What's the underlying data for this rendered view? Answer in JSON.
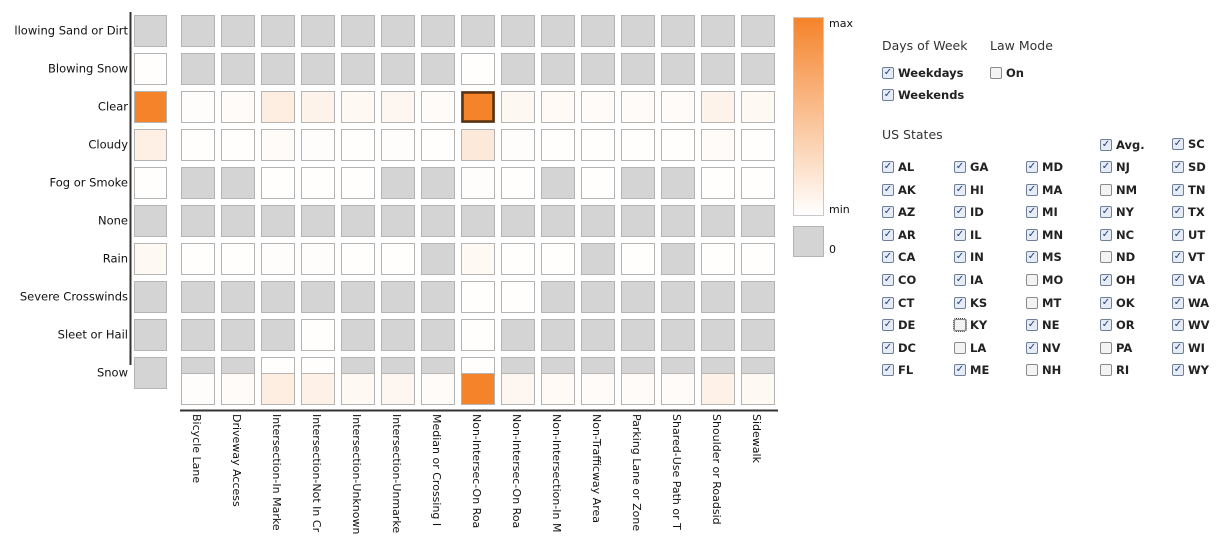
{
  "chart_data": {
    "type": "heatmap",
    "rows": [
      "llowing Sand or Dirt",
      "Blowing Snow",
      "Clear",
      "Cloudy",
      "Fog or Smoke",
      "None",
      "Rain",
      "Severe Crosswinds",
      "Sleet or Hail",
      "Snow"
    ],
    "columns": [
      "Bicycle Lane",
      "Driveway Access",
      "Intersection-In Marke",
      "Intersection-Not In Cr",
      "Intersection-Unknown",
      "Intersection-Unmarke",
      "Median or Crossing I",
      "Non-Intersec-On Roa",
      "Non-Intersec-On Roa",
      "Non-Intersection-In M",
      "Non-Trafficway Area",
      "Parking Lane or Zone",
      "Shared-Use Path or T",
      "Shoulder or Roadsid",
      "Sidewalk"
    ],
    "values": [
      [
        0,
        0,
        0,
        0,
        0,
        0,
        0,
        0,
        0,
        0,
        0,
        0,
        0,
        0,
        0
      ],
      [
        0,
        0,
        0,
        0,
        0,
        0,
        0,
        0.01,
        0,
        0,
        0,
        0,
        0,
        0,
        0
      ],
      [
        0.02,
        0.03,
        0.14,
        0.1,
        0.05,
        0.07,
        0.03,
        1.0,
        0.06,
        0.04,
        0.03,
        0.03,
        0.03,
        0.1,
        0.05
      ],
      [
        0.01,
        0.01,
        0.03,
        0.02,
        0.01,
        0.02,
        0.01,
        0.18,
        0.02,
        0.01,
        0.01,
        0.01,
        0.01,
        0.03,
        0.01
      ],
      [
        0,
        0,
        0.01,
        0.01,
        0.01,
        0,
        0,
        0.02,
        0.01,
        0,
        0.01,
        0,
        0,
        0.01,
        0.01
      ],
      [
        0,
        0,
        0,
        0,
        0,
        0,
        0,
        0,
        0,
        0,
        0,
        0,
        0,
        0,
        0
      ],
      [
        0.01,
        0.01,
        0.02,
        0.02,
        0.01,
        0.01,
        0,
        0.05,
        0.01,
        0.01,
        0,
        0.01,
        0,
        0.01,
        0.01
      ],
      [
        0,
        0,
        0,
        0,
        0,
        0,
        0,
        0.01,
        0.01,
        0,
        0,
        0,
        0,
        0,
        0
      ],
      [
        0,
        0,
        0,
        0.01,
        0,
        0,
        0,
        0.01,
        0,
        0,
        0,
        0,
        0,
        0,
        0
      ],
      [
        0,
        0,
        0.01,
        0.01,
        0,
        0,
        0,
        0.01,
        0,
        0,
        0,
        0,
        0,
        0,
        0
      ]
    ],
    "zero_cells": [
      [
        0,
        1,
        2,
        3,
        4,
        5,
        6,
        7,
        8,
        9,
        10,
        11,
        12,
        13,
        14
      ],
      [
        0,
        1,
        2,
        3,
        4,
        5,
        6,
        8,
        9,
        10,
        11,
        12,
        13,
        14
      ],
      [],
      [],
      [
        0,
        1,
        5,
        6,
        9,
        11,
        12
      ],
      [
        0,
        1,
        2,
        3,
        4,
        5,
        6,
        7,
        8,
        9,
        10,
        11,
        12,
        13,
        14
      ],
      [
        6,
        10,
        12
      ],
      [
        0,
        1,
        2,
        3,
        4,
        5,
        6,
        9,
        10,
        11,
        12,
        13,
        14
      ],
      [
        0,
        1,
        2,
        4,
        5,
        6,
        8,
        9,
        10,
        11,
        12,
        13,
        14
      ],
      [
        0,
        1,
        4,
        5,
        6,
        8,
        9,
        10,
        11,
        12,
        13,
        14
      ]
    ],
    "row_totals": [
      0,
      0.01,
      1.0,
      0.12,
      0.01,
      0,
      0.05,
      0,
      0,
      0
    ],
    "column_totals": [
      0.02,
      0.03,
      0.14,
      0.11,
      0.05,
      0.07,
      0.03,
      1.0,
      0.07,
      0.04,
      0.03,
      0.03,
      0.03,
      0.11,
      0.05
    ],
    "highlight_cell": {
      "row": 2,
      "col": 7
    },
    "legend": {
      "max_label": "max",
      "min_label": "min",
      "zero_label": "0"
    },
    "colors": {
      "max": "#f5832a",
      "min": "#ffffff",
      "zero": "#d4d4d4",
      "grid_stroke": "#b4b4b4",
      "highlight_stroke": "#5a3210"
    }
  },
  "controls": {
    "days_title": "Days of Week",
    "days": [
      {
        "label": "Weekdays",
        "checked": true
      },
      {
        "label": "Weekends",
        "checked": true
      }
    ],
    "law_title": "Law Mode",
    "law": {
      "label": "On",
      "checked": false
    },
    "states_title": "US States",
    "avg": {
      "label": "Avg.",
      "checked": true
    },
    "states": [
      {
        "label": "AL",
        "checked": true
      },
      {
        "label": "AK",
        "checked": true
      },
      {
        "label": "AZ",
        "checked": true
      },
      {
        "label": "AR",
        "checked": true
      },
      {
        "label": "CA",
        "checked": true
      },
      {
        "label": "CO",
        "checked": true
      },
      {
        "label": "CT",
        "checked": true
      },
      {
        "label": "DE",
        "checked": true
      },
      {
        "label": "DC",
        "checked": true
      },
      {
        "label": "FL",
        "checked": true
      },
      {
        "label": "GA",
        "checked": true
      },
      {
        "label": "HI",
        "checked": true
      },
      {
        "label": "ID",
        "checked": true
      },
      {
        "label": "IL",
        "checked": true
      },
      {
        "label": "IN",
        "checked": true
      },
      {
        "label": "IA",
        "checked": true
      },
      {
        "label": "KS",
        "checked": true
      },
      {
        "label": "KY",
        "checked": false,
        "focused": true
      },
      {
        "label": "LA",
        "checked": false
      },
      {
        "label": "ME",
        "checked": true
      },
      {
        "label": "MD",
        "checked": true
      },
      {
        "label": "MA",
        "checked": true
      },
      {
        "label": "MI",
        "checked": true
      },
      {
        "label": "MN",
        "checked": true
      },
      {
        "label": "MS",
        "checked": true
      },
      {
        "label": "MO",
        "checked": false
      },
      {
        "label": "MT",
        "checked": false
      },
      {
        "label": "NE",
        "checked": true
      },
      {
        "label": "NV",
        "checked": true
      },
      {
        "label": "NH",
        "checked": false
      },
      {
        "label": "NJ",
        "checked": true
      },
      {
        "label": "NM",
        "checked": false
      },
      {
        "label": "NY",
        "checked": true
      },
      {
        "label": "NC",
        "checked": true
      },
      {
        "label": "ND",
        "checked": false
      },
      {
        "label": "OH",
        "checked": true
      },
      {
        "label": "OK",
        "checked": true
      },
      {
        "label": "OR",
        "checked": true
      },
      {
        "label": "PA",
        "checked": false
      },
      {
        "label": "RI",
        "checked": false
      },
      {
        "label": "SC",
        "checked": true
      },
      {
        "label": "SD",
        "checked": true
      },
      {
        "label": "TN",
        "checked": true
      },
      {
        "label": "TX",
        "checked": true
      },
      {
        "label": "UT",
        "checked": true
      },
      {
        "label": "VT",
        "checked": true
      },
      {
        "label": "VA",
        "checked": true
      },
      {
        "label": "WA",
        "checked": true
      },
      {
        "label": "WV",
        "checked": true
      },
      {
        "label": "WI",
        "checked": true
      },
      {
        "label": "WY",
        "checked": true
      }
    ]
  }
}
